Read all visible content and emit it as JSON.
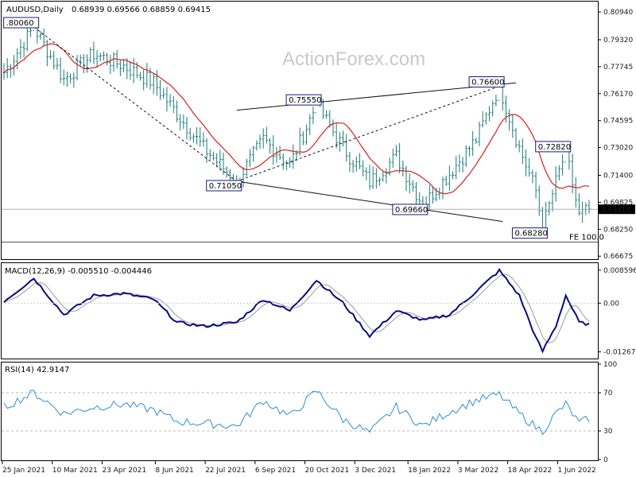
{
  "header": {
    "symbol": "AUDUSD,Daily",
    "ohlc": "0.68939 0.69566 0.68859 0.69415"
  },
  "watermark": "ActionForex.com",
  "colors": {
    "price_bar": "#1b7a7a",
    "sma": "#d62020",
    "trendline": "#111111",
    "macd": "#0a0a80",
    "signal": "#9a9a9a",
    "rsi": "#2b8fd0",
    "label_border": "#1a1a7a",
    "price_tag_bg": "#000000"
  },
  "chart_data": [
    {
      "type": "ohlc",
      "panel": "main",
      "title": "AUDUSD,Daily",
      "ylim": [
        0.665,
        0.815
      ],
      "y_ticks": [
        "0.80940",
        "0.79320",
        "0.77745",
        "0.76170",
        "0.74595",
        "0.73020",
        "0.71400",
        "0.69825",
        "0.68250",
        "0.66675"
      ],
      "current_price": "0.69415",
      "annotations": [
        {
          "label": ".80060",
          "value": 0.8006,
          "idx": 9
        },
        {
          "label": "0.71050",
          "value": 0.7105,
          "idx": 70
        },
        {
          "label": "0.75550",
          "value": 0.7555,
          "idx": 94
        },
        {
          "label": "0.69660",
          "value": 0.6966,
          "idx": 126
        },
        {
          "label": "0.76600",
          "value": 0.766,
          "idx": 149
        },
        {
          "label": "0.68280",
          "value": 0.6828,
          "idx": 162
        },
        {
          "label": "0.72820",
          "value": 0.7282,
          "idx": 169
        }
      ],
      "fe_label": "FE 100.0",
      "close_path": [
        [
          0,
          0.774
        ],
        [
          9,
          0.8006
        ],
        [
          18,
          0.77
        ],
        [
          27,
          0.785
        ],
        [
          36,
          0.778
        ],
        [
          45,
          0.768
        ],
        [
          52,
          0.75
        ],
        [
          60,
          0.73
        ],
        [
          70,
          0.7105
        ],
        [
          78,
          0.735
        ],
        [
          86,
          0.72
        ],
        [
          94,
          0.7555
        ],
        [
          102,
          0.73
        ],
        [
          110,
          0.71
        ],
        [
          118,
          0.725
        ],
        [
          126,
          0.6966
        ],
        [
          134,
          0.715
        ],
        [
          142,
          0.735
        ],
        [
          149,
          0.766
        ],
        [
          155,
          0.73
        ],
        [
          160,
          0.705
        ],
        [
          162,
          0.6828
        ],
        [
          166,
          0.71
        ],
        [
          169,
          0.7282
        ],
        [
          173,
          0.69
        ],
        [
          176,
          0.6941
        ]
      ],
      "series": [
        {
          "name": "SMA",
          "values": "moving average of close"
        }
      ]
    },
    {
      "type": "line",
      "panel": "macd",
      "title": "MACD(12,26,9) -0.005510 -0.004446",
      "ylim": [
        -0.0142,
        0.01
      ],
      "y_ticks": [
        "0.008596",
        "0.00",
        "-0.01267"
      ],
      "path": [
        [
          0,
          0.0005
        ],
        [
          9,
          0.0065
        ],
        [
          18,
          -0.003
        ],
        [
          27,
          0.002
        ],
        [
          36,
          0.0025
        ],
        [
          45,
          0.001
        ],
        [
          52,
          -0.005
        ],
        [
          60,
          -0.006
        ],
        [
          70,
          -0.005
        ],
        [
          78,
          0.001
        ],
        [
          86,
          -0.002
        ],
        [
          94,
          0.006
        ],
        [
          102,
          0.0
        ],
        [
          110,
          -0.0085
        ],
        [
          118,
          -0.002
        ],
        [
          126,
          -0.0045
        ],
        [
          134,
          -0.003
        ],
        [
          142,
          0.003
        ],
        [
          149,
          0.0085
        ],
        [
          155,
          0.002
        ],
        [
          160,
          -0.009
        ],
        [
          162,
          -0.0125
        ],
        [
          166,
          -0.006
        ],
        [
          169,
          0.002
        ],
        [
          173,
          -0.005
        ],
        [
          176,
          -0.0055
        ]
      ]
    },
    {
      "type": "line",
      "panel": "rsi",
      "title": "RSI(14) 42.9147",
      "ylim": [
        0,
        100
      ],
      "y_ticks": [
        "100",
        "70",
        "30",
        "0"
      ],
      "levels": [
        70,
        30
      ],
      "path": [
        [
          0,
          55
        ],
        [
          9,
          70
        ],
        [
          18,
          48
        ],
        [
          27,
          55
        ],
        [
          36,
          58
        ],
        [
          45,
          52
        ],
        [
          52,
          40
        ],
        [
          60,
          38
        ],
        [
          70,
          35
        ],
        [
          78,
          62
        ],
        [
          86,
          45
        ],
        [
          94,
          72
        ],
        [
          102,
          42
        ],
        [
          110,
          28
        ],
        [
          118,
          55
        ],
        [
          126,
          35
        ],
        [
          134,
          50
        ],
        [
          142,
          62
        ],
        [
          149,
          68
        ],
        [
          155,
          48
        ],
        [
          160,
          34
        ],
        [
          162,
          30
        ],
        [
          166,
          48
        ],
        [
          169,
          58
        ],
        [
          173,
          38
        ],
        [
          176,
          43
        ]
      ]
    }
  ],
  "x_axis": {
    "ticks": [
      "25 Jan 2021",
      "10 Mar 2021",
      "23 Apr 2021",
      "8 Jun 2021",
      "22 Jul 2021",
      "6 Sep 2021",
      "20 Oct 2021",
      "3 Dec 2021",
      "18 Jan 2022",
      "3 Mar 2022",
      "18 Apr 2022",
      "1 Jun 2022"
    ],
    "bar_count": 177
  }
}
